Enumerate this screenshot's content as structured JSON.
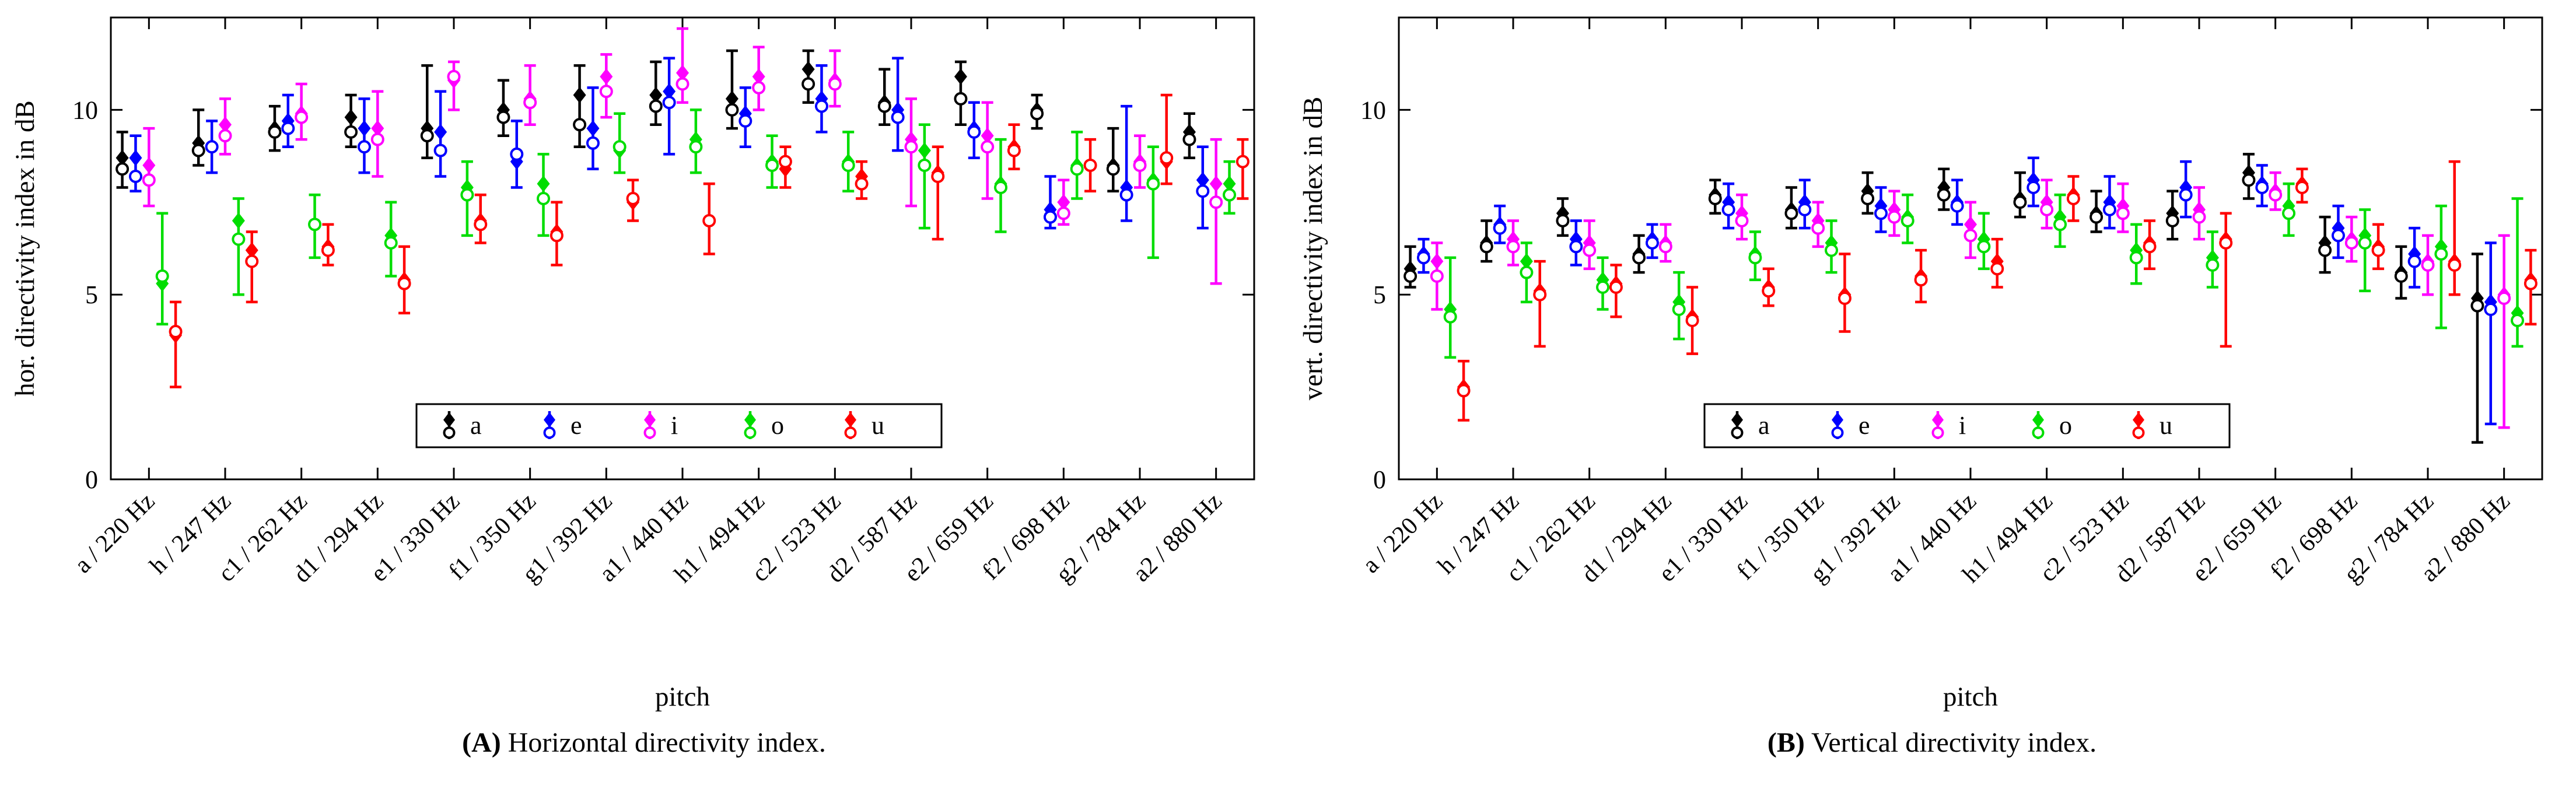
{
  "charts": [
    {
      "caption_label": "(A)",
      "caption_text": "Horizontal directivity index."
    },
    {
      "caption_label": "(B)",
      "caption_text": "Vertical directivity index."
    }
  ],
  "chart_data": [
    {
      "type": "scatter",
      "error_bars": true,
      "title": "",
      "xlabel": "pitch",
      "ylabel": "hor. directivity index in dB",
      "ylim": [
        0,
        12.5
      ],
      "yticks": [
        0,
        5,
        10
      ],
      "grid": false,
      "legend": {
        "position": "south-inside",
        "labels": [
          "a",
          "e",
          "i",
          "o",
          "u"
        ]
      },
      "markers": {
        "mean": "filled-diamond",
        "median": "open-circle"
      },
      "categories": [
        "a / 220 Hz",
        "h / 247 Hz",
        "c1 / 262 Hz",
        "d1 / 294 Hz",
        "e1 / 330 Hz",
        "f1 / 350 Hz",
        "g1 / 392 Hz",
        "a1 / 440 Hz",
        "h1 / 494 Hz",
        "c2 / 523 Hz",
        "d2 / 587 Hz",
        "e2 / 659 Hz",
        "f2 / 698 Hz",
        "g2 / 784 Hz",
        "a2 / 880 Hz"
      ],
      "series": [
        {
          "name": "a",
          "color": "#000000",
          "mean": [
            8.7,
            9.1,
            9.5,
            9.8,
            9.5,
            10.0,
            10.4,
            10.4,
            10.3,
            11.1,
            10.2,
            10.9,
            10.0,
            8.5,
            9.4
          ],
          "median": [
            8.4,
            8.9,
            9.4,
            9.4,
            9.3,
            9.8,
            9.6,
            10.1,
            10.0,
            10.7,
            10.1,
            10.3,
            9.9,
            8.4,
            9.2
          ],
          "lo": [
            7.9,
            8.5,
            8.9,
            9.0,
            8.7,
            9.3,
            9.0,
            9.6,
            9.5,
            10.2,
            9.6,
            9.6,
            9.5,
            7.8,
            8.7
          ],
          "hi": [
            9.4,
            10.0,
            10.1,
            10.4,
            11.2,
            10.8,
            11.2,
            11.3,
            11.6,
            11.6,
            11.1,
            11.3,
            10.4,
            9.5,
            9.9
          ]
        },
        {
          "name": "e",
          "color": "#0000ff",
          "mean": [
            8.7,
            9.0,
            9.7,
            9.5,
            9.4,
            8.6,
            9.5,
            10.5,
            9.9,
            10.3,
            10.0,
            9.5,
            7.3,
            7.9,
            8.1
          ],
          "median": [
            8.2,
            9.0,
            9.5,
            9.0,
            8.9,
            8.8,
            9.1,
            10.2,
            9.7,
            10.1,
            9.8,
            9.4,
            7.1,
            7.7,
            7.8
          ],
          "lo": [
            7.8,
            8.3,
            9.0,
            8.3,
            8.2,
            7.9,
            8.4,
            8.8,
            9.0,
            9.4,
            8.9,
            8.7,
            6.8,
            7.0,
            6.8
          ],
          "hi": [
            9.3,
            9.7,
            10.4,
            10.3,
            10.5,
            9.7,
            10.6,
            11.4,
            10.6,
            11.2,
            11.4,
            10.2,
            8.2,
            10.1,
            9.0
          ]
        },
        {
          "name": "i",
          "color": "#ff00ff",
          "mean": [
            8.5,
            9.6,
            9.9,
            9.5,
            10.8,
            10.3,
            10.9,
            11.0,
            10.9,
            10.8,
            9.2,
            9.3,
            7.5,
            8.6,
            8.0
          ],
          "median": [
            8.1,
            9.3,
            9.8,
            9.2,
            10.9,
            10.2,
            10.5,
            10.7,
            10.6,
            10.7,
            9.0,
            9.0,
            7.2,
            8.5,
            7.5
          ],
          "lo": [
            7.4,
            8.8,
            9.2,
            8.2,
            10.0,
            9.6,
            9.8,
            10.2,
            10.0,
            10.1,
            7.4,
            7.6,
            6.9,
            7.9,
            5.3
          ],
          "hi": [
            9.5,
            10.3,
            10.7,
            10.5,
            11.3,
            11.2,
            11.5,
            12.2,
            11.7,
            11.6,
            10.3,
            10.2,
            8.1,
            9.3,
            9.2
          ]
        },
        {
          "name": "o",
          "color": "#00dd00",
          "mean": [
            5.3,
            7.0,
            6.9,
            6.6,
            7.9,
            8.0,
            8.9,
            9.2,
            8.6,
            8.6,
            8.9,
            8.0,
            8.5,
            8.1,
            8.0
          ],
          "median": [
            5.5,
            6.5,
            6.9,
            6.4,
            7.7,
            7.6,
            9.0,
            9.0,
            8.5,
            8.5,
            8.5,
            7.9,
            8.4,
            8.0,
            7.7
          ],
          "lo": [
            4.2,
            5.0,
            6.0,
            5.5,
            6.6,
            6.6,
            8.3,
            8.3,
            7.9,
            7.8,
            6.8,
            6.7,
            7.6,
            6.0,
            7.2
          ],
          "hi": [
            7.2,
            7.6,
            7.7,
            7.5,
            8.6,
            8.8,
            9.9,
            10.0,
            9.3,
            9.4,
            9.6,
            9.2,
            9.4,
            9.0,
            8.6
          ]
        },
        {
          "name": "u",
          "color": "#ff0000",
          "mean": [
            3.9,
            6.2,
            6.3,
            5.4,
            7.0,
            6.7,
            7.5,
            7.0,
            8.4,
            8.2,
            8.3,
            9.0,
            8.5,
            8.6,
            8.6
          ],
          "median": [
            4.0,
            5.9,
            6.2,
            5.3,
            6.9,
            6.6,
            7.6,
            7.0,
            8.6,
            8.0,
            8.2,
            8.9,
            8.5,
            8.7,
            8.6
          ],
          "lo": [
            2.5,
            4.8,
            5.8,
            4.5,
            6.4,
            5.8,
            7.0,
            6.1,
            7.9,
            7.6,
            6.5,
            8.4,
            7.8,
            8.0,
            7.6
          ],
          "hi": [
            4.8,
            6.7,
            6.9,
            6.3,
            7.7,
            7.5,
            8.1,
            8.0,
            9.0,
            8.6,
            9.0,
            9.6,
            9.2,
            10.4,
            9.2
          ]
        }
      ]
    },
    {
      "type": "scatter",
      "error_bars": true,
      "title": "",
      "xlabel": "pitch",
      "ylabel": "vert. directivity index in dB",
      "ylim": [
        0,
        12.5
      ],
      "yticks": [
        0,
        5,
        10
      ],
      "grid": false,
      "legend": {
        "position": "south-inside",
        "labels": [
          "a",
          "e",
          "i",
          "o",
          "u"
        ]
      },
      "markers": {
        "mean": "filled-diamond",
        "median": "open-circle"
      },
      "categories": [
        "a / 220 Hz",
        "h / 247 Hz",
        "c1 / 262 Hz",
        "d1 / 294 Hz",
        "e1 / 330 Hz",
        "f1 / 350 Hz",
        "g1 / 392 Hz",
        "a1 / 440 Hz",
        "h1 / 494 Hz",
        "c2 / 523 Hz",
        "d2 / 587 Hz",
        "e2 / 659 Hz",
        "f2 / 698 Hz",
        "g2 / 784 Hz",
        "a2 / 880 Hz"
      ],
      "series": [
        {
          "name": "a",
          "color": "#000000",
          "mean": [
            5.7,
            6.4,
            7.2,
            6.1,
            7.7,
            7.3,
            7.8,
            7.9,
            7.6,
            7.2,
            7.2,
            8.3,
            6.4,
            5.6,
            4.9
          ],
          "median": [
            5.5,
            6.3,
            7.0,
            6.0,
            7.6,
            7.2,
            7.6,
            7.7,
            7.5,
            7.1,
            7.0,
            8.1,
            6.2,
            5.5,
            4.7
          ],
          "lo": [
            5.2,
            5.9,
            6.6,
            5.6,
            7.2,
            6.8,
            7.2,
            7.3,
            7.1,
            6.7,
            6.5,
            7.6,
            5.6,
            4.9,
            1.0
          ],
          "hi": [
            6.3,
            7.0,
            7.6,
            6.6,
            8.1,
            7.9,
            8.3,
            8.4,
            8.3,
            7.8,
            7.8,
            8.8,
            7.1,
            6.3,
            6.1
          ]
        },
        {
          "name": "e",
          "color": "#0000ff",
          "mean": [
            6.1,
            6.9,
            6.5,
            6.5,
            7.5,
            7.5,
            7.4,
            7.5,
            8.1,
            7.5,
            7.9,
            8.0,
            6.8,
            6.1,
            4.8
          ],
          "median": [
            6.0,
            6.8,
            6.3,
            6.4,
            7.3,
            7.3,
            7.2,
            7.4,
            7.9,
            7.3,
            7.7,
            7.9,
            6.6,
            5.9,
            4.6
          ],
          "lo": [
            5.6,
            6.4,
            5.8,
            6.0,
            6.8,
            6.8,
            6.7,
            6.9,
            7.4,
            6.8,
            7.1,
            7.4,
            6.0,
            5.2,
            1.5
          ],
          "hi": [
            6.5,
            7.4,
            7.0,
            6.9,
            8.0,
            8.1,
            7.9,
            8.1,
            8.7,
            8.2,
            8.6,
            8.5,
            7.4,
            6.8,
            6.4
          ]
        },
        {
          "name": "i",
          "color": "#ff00ff",
          "mean": [
            5.9,
            6.5,
            6.4,
            6.4,
            7.2,
            7.0,
            7.3,
            6.9,
            7.5,
            7.4,
            7.3,
            7.8,
            6.5,
            5.9,
            5.0
          ],
          "median": [
            5.5,
            6.3,
            6.2,
            6.3,
            7.0,
            6.8,
            7.1,
            6.6,
            7.3,
            7.2,
            7.1,
            7.7,
            6.4,
            5.8,
            4.9
          ],
          "lo": [
            4.6,
            5.8,
            5.7,
            5.9,
            6.5,
            6.3,
            6.6,
            6.0,
            6.8,
            6.7,
            6.5,
            7.3,
            5.9,
            5.0,
            1.4
          ],
          "hi": [
            6.4,
            7.0,
            7.0,
            6.9,
            7.7,
            7.5,
            7.8,
            7.5,
            8.1,
            8.0,
            7.9,
            8.3,
            7.1,
            6.6,
            6.6
          ]
        },
        {
          "name": "o",
          "color": "#00dd00",
          "mean": [
            4.6,
            5.9,
            5.4,
            4.8,
            6.1,
            6.4,
            7.1,
            6.5,
            7.1,
            6.2,
            6.0,
            7.4,
            6.6,
            6.3,
            4.5
          ],
          "median": [
            4.4,
            5.6,
            5.2,
            4.6,
            6.0,
            6.2,
            7.0,
            6.3,
            6.9,
            6.0,
            5.8,
            7.2,
            6.4,
            6.1,
            4.3
          ],
          "lo": [
            3.3,
            4.8,
            4.6,
            3.8,
            5.4,
            5.6,
            6.4,
            5.7,
            6.3,
            5.3,
            5.2,
            6.6,
            5.1,
            4.1,
            3.6
          ],
          "hi": [
            6.0,
            6.4,
            6.0,
            5.6,
            6.7,
            7.0,
            7.7,
            7.2,
            7.7,
            6.9,
            6.7,
            8.0,
            7.3,
            7.4,
            7.6
          ]
        },
        {
          "name": "u",
          "color": "#ff0000",
          "mean": [
            2.5,
            5.1,
            5.3,
            4.4,
            5.2,
            5.0,
            5.5,
            5.9,
            7.7,
            6.4,
            6.5,
            8.0,
            6.3,
            5.9,
            5.4
          ],
          "median": [
            2.4,
            5.0,
            5.2,
            4.3,
            5.1,
            4.9,
            5.4,
            5.7,
            7.6,
            6.3,
            6.4,
            7.9,
            6.2,
            5.8,
            5.3
          ],
          "lo": [
            1.6,
            3.6,
            4.4,
            3.4,
            4.7,
            4.0,
            4.8,
            5.2,
            7.0,
            5.7,
            3.6,
            7.5,
            5.7,
            5.0,
            4.2
          ],
          "hi": [
            3.2,
            5.9,
            5.8,
            5.2,
            5.7,
            6.1,
            6.2,
            6.5,
            8.2,
            7.0,
            7.2,
            8.4,
            6.9,
            8.6,
            6.2
          ]
        }
      ]
    }
  ]
}
